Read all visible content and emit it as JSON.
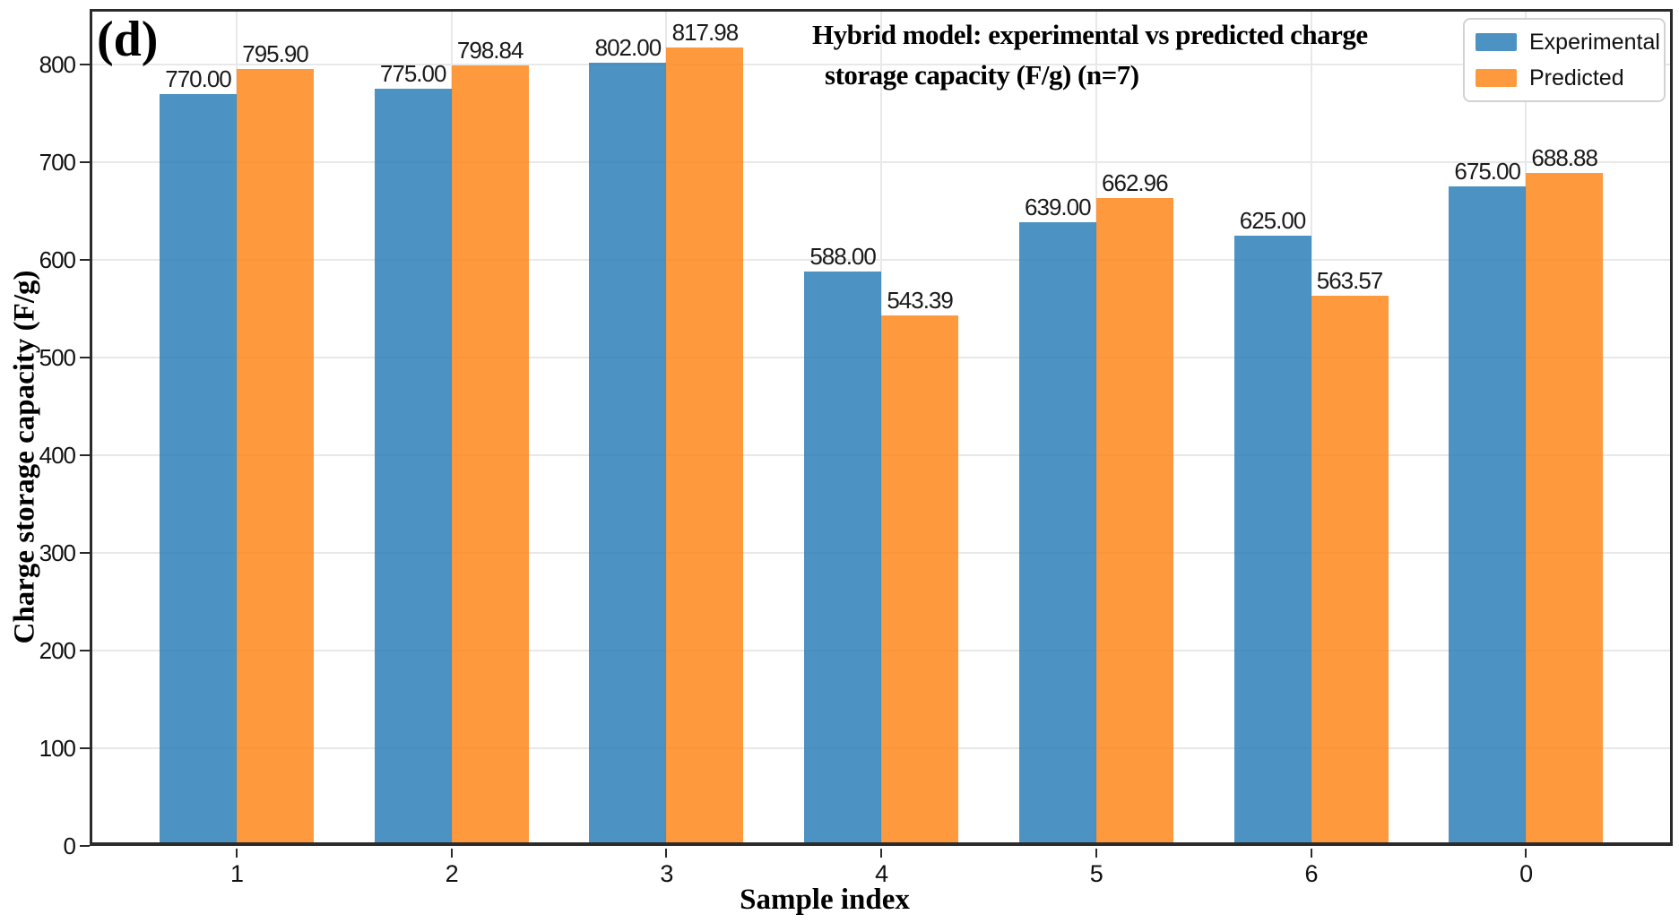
{
  "panel_label": "(d)",
  "chart_data": {
    "type": "bar",
    "title_lines": [
      "Hybrid  model: experimental vs predicted charge",
      "storage capacity (F/g) (n=7)"
    ],
    "xlabel": "Sample index",
    "ylabel": "Charge storage capacity (F/g)",
    "categories": [
      "1",
      "2",
      "3",
      "4",
      "5",
      "6",
      "0"
    ],
    "series": [
      {
        "name": "Experimental",
        "color": "#1f77b4",
        "values": [
          770.0,
          775.0,
          802.0,
          588.0,
          639.0,
          625.0,
          675.0
        ]
      },
      {
        "name": "Predicted",
        "color": "#ff7f0e",
        "values": [
          795.9,
          798.84,
          817.98,
          543.39,
          662.96,
          563.57,
          688.88
        ]
      }
    ],
    "bar_alpha": 0.8,
    "value_label_decimals": 2,
    "y_ticks": [
      0,
      100,
      200,
      300,
      400,
      500,
      600,
      700,
      800
    ],
    "ylim": [
      0,
      857
    ],
    "grid": true,
    "gridline_color": "#e8e8e8",
    "legend_position": "upper right"
  }
}
